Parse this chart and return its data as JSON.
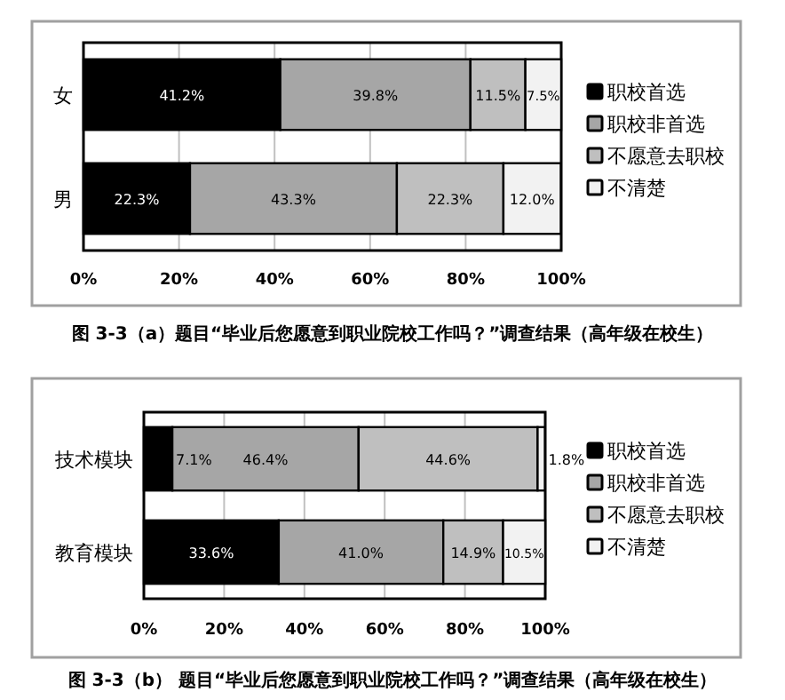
{
  "chart_data": [
    {
      "type": "bar",
      "orientation": "horizontal",
      "stacked": true,
      "title": "图 3-3（a）题目“毕业后您愿意到职业院校工作吗？”调查结果（高年级在校生）",
      "categories": [
        "女",
        "男"
      ],
      "series": [
        {
          "name": "职校首选",
          "color": "#000000",
          "values": [
            41.2,
            22.3
          ],
          "value_labels": [
            "41.2%",
            "22.3%"
          ]
        },
        {
          "name": "职校非首选",
          "color": "#a6a6a6",
          "values": [
            39.8,
            43.3
          ],
          "value_labels": [
            "39.8%",
            "43.3%"
          ]
        },
        {
          "name": "不愿意去职校",
          "color": "#bfbfbf",
          "values": [
            11.5,
            22.3
          ],
          "value_labels": [
            "11.5%",
            "22.3%"
          ]
        },
        {
          "name": "不清楚",
          "color": "#f2f2f2",
          "values": [
            7.5,
            12.0
          ],
          "value_labels": [
            "7.5%",
            "12.0%"
          ]
        }
      ],
      "xlim": [
        0,
        100
      ],
      "xticks": [
        {
          "value": 0,
          "label": "0%"
        },
        {
          "value": 20,
          "label": "20%"
        },
        {
          "value": 40,
          "label": "40%"
        },
        {
          "value": 60,
          "label": "60%"
        },
        {
          "value": 80,
          "label": "80%"
        },
        {
          "value": 100,
          "label": "100%"
        }
      ],
      "grid": "x",
      "legend": "right"
    },
    {
      "type": "bar",
      "orientation": "horizontal",
      "stacked": true,
      "title": "图 3-3（b）  题目“毕业后您愿意到职业院校工作吗？”调查结果（高年级在校生）",
      "categories": [
        "技术模块",
        "教育模块"
      ],
      "series": [
        {
          "name": "职校首选",
          "color": "#000000",
          "values": [
            7.1,
            33.6
          ],
          "value_labels": [
            "7.1%",
            "33.6%"
          ]
        },
        {
          "name": "职校非首选",
          "color": "#a6a6a6",
          "values": [
            46.4,
            41.0
          ],
          "value_labels": [
            "46.4%",
            "41.0%"
          ]
        },
        {
          "name": "不愿意去职校",
          "color": "#bfbfbf",
          "values": [
            44.6,
            14.9
          ],
          "value_labels": [
            "44.6%",
            "14.9%"
          ]
        },
        {
          "name": "不清楚",
          "color": "#f2f2f2",
          "values": [
            1.8,
            10.5
          ],
          "value_labels": [
            "1.8%",
            "10.5%"
          ]
        }
      ],
      "xlim": [
        0,
        100
      ],
      "xticks": [
        {
          "value": 0,
          "label": "0%"
        },
        {
          "value": 20,
          "label": "20%"
        },
        {
          "value": 40,
          "label": "40%"
        },
        {
          "value": 60,
          "label": "60%"
        },
        {
          "value": 80,
          "label": "80%"
        },
        {
          "value": 100,
          "label": "100%"
        }
      ],
      "grid": "x",
      "legend": "right"
    }
  ]
}
